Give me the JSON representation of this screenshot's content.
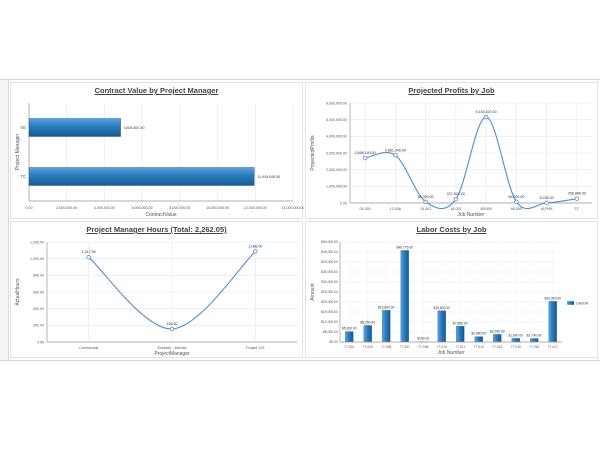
{
  "chart_data": [
    {
      "type": "bar",
      "orientation": "horizontal",
      "title": "Contract Value by Project Manager",
      "xlabel": "ContractValue",
      "ylabel": "Project Manager",
      "categories": [
        "SE",
        "TC"
      ],
      "values": [
        4855857.5,
        11945948.95
      ],
      "value_labels": [
        "4,855,857.50",
        "11,945,948.95"
      ],
      "xlim": [
        0,
        14000000
      ],
      "xticks": [
        0,
        2000000,
        4000000,
        6000000,
        8000000,
        10000000,
        12000000,
        14000000
      ],
      "xtick_labels": [
        "0.00",
        "2,000,000.00",
        "4,000,000.00",
        "6,000,000.00",
        "8,000,000.00",
        "10,000,000.00",
        "12,000,000.00",
        "14,000,000.00"
      ],
      "color": "#1f6fad",
      "grid": true
    },
    {
      "type": "line",
      "smooth": true,
      "title": "Projected Profits by Job",
      "xlabel": "Job Number",
      "ylabel": "ProjectedProfits",
      "categories": [
        "05-003",
        "12-006",
        "15-001",
        "18-002",
        "400400",
        "66-555",
        "ALPHA",
        "TC"
      ],
      "values": [
        2698140,
        2861045,
        69000,
        227621,
        5154520,
        69000,
        8236,
        256886
      ],
      "value_labels": [
        "2,698,140.00",
        "2,861,045.00",
        "69,000.00",
        "227,621.00",
        "5,154,520.00",
        "69,000.00",
        "8,236.00",
        "256,886.00"
      ],
      "ylim": [
        0,
        6000000
      ],
      "yticks": [
        0,
        1000000,
        2000000,
        3000000,
        4000000,
        5000000,
        6000000
      ],
      "ytick_labels": [
        "0.00",
        "1,000,000.00",
        "2,000,000.00",
        "3,000,000.00",
        "4,000,000.00",
        "5,000,000.00",
        "6,000,000.00"
      ],
      "color": "#4b8fd0",
      "grid": true
    },
    {
      "type": "line",
      "smooth": true,
      "title": "Project Manager Hours (Total: 2,262.05)",
      "xlabel": "ProjectManager",
      "ylabel": "ActualHours",
      "categories": [
        "Commercial",
        "Erickson - Mendel",
        "Project 123"
      ],
      "values": [
        1017.55,
        156.5,
        1088.0
      ],
      "value_labels": [
        "1,017.55",
        "156.50",
        "1,088.00"
      ],
      "ylim": [
        0,
        1200
      ],
      "yticks": [
        0,
        200,
        400,
        600,
        800,
        1000,
        1200
      ],
      "ytick_labels": [
        "0.00",
        "200.00",
        "400.00",
        "600.00",
        "800.00",
        "1,000.00",
        "1,200.00"
      ],
      "color": "#4b8fd0",
      "grid": true
    },
    {
      "type": "bar",
      "title": "Labor Costs by Job",
      "xlabel": "Job Number",
      "ylabel": "Amount",
      "categories": [
        "77-001",
        "77-003",
        "77-005",
        "77-007",
        "77-008",
        "77-010",
        "77-011",
        "77-012",
        "77-013",
        "77-015",
        "77-016",
        "77-017"
      ],
      "values": [
        5200,
        8250,
        15800,
        45775,
        150,
        15600,
        7850,
        2680,
        3790,
        1800,
        1740,
        20300
      ],
      "value_labels": [
        "$5,200.00",
        "$8,250.00",
        "$15,800.00",
        "$45,775.00",
        "$150.00",
        "$15,600.00",
        "$7,850.00",
        "$2,680.00",
        "$3,790.00",
        "$1,800.00",
        "$1,740.00",
        "$20,300.00"
      ],
      "ylim": [
        0,
        50000
      ],
      "yticks": [
        0,
        5000,
        10000,
        15000,
        20000,
        25000,
        30000,
        35000,
        40000,
        45000,
        50000
      ],
      "ytick_labels": [
        "$0.00",
        "$5,000.00",
        "$10,000.00",
        "$15,000.00",
        "$20,000.00",
        "$25,000.00",
        "$30,000.00",
        "$35,000.00",
        "$40,000.00",
        "$45,000.00",
        "$50,000.00"
      ],
      "legend": [
        "LABOR"
      ],
      "legend_position": "right",
      "color": "#1f6fad",
      "grid": true
    }
  ]
}
